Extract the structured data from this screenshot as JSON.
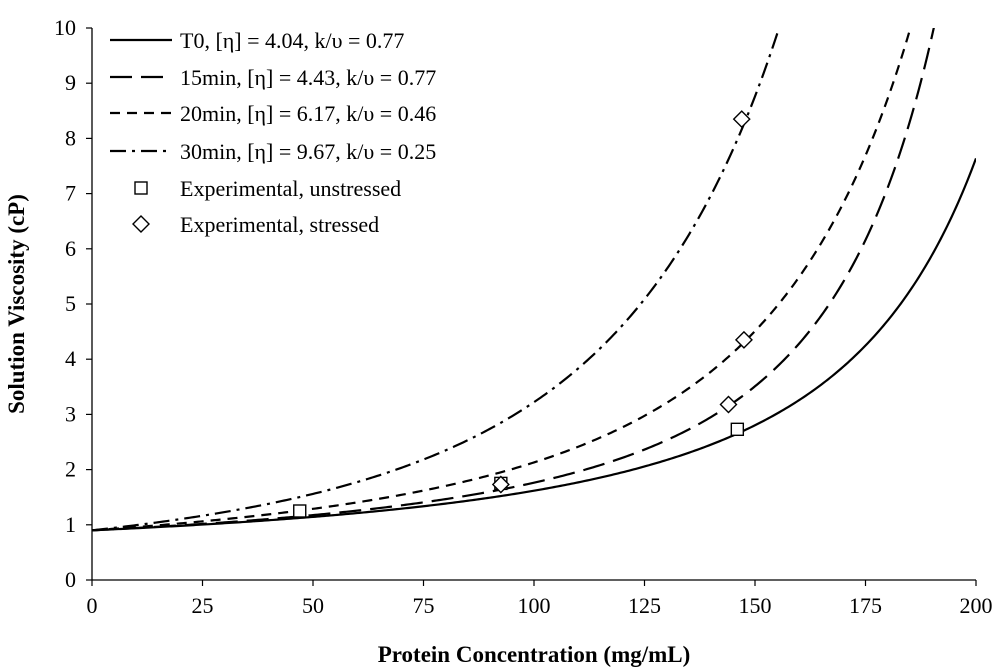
{
  "chart_data": {
    "type": "line",
    "title": "",
    "xlabel": "Protein Concentration (mg/mL)",
    "ylabel": "Solution Viscosity (cP)",
    "xlim": [
      0,
      200
    ],
    "ylim": [
      0,
      10
    ],
    "xticks": [
      0,
      25,
      50,
      75,
      100,
      125,
      150,
      175,
      200
    ],
    "yticks": [
      0,
      1,
      2,
      3,
      4,
      5,
      6,
      7,
      8,
      9,
      10
    ],
    "grid": false,
    "legend_position": "top-left",
    "solvent_viscosity": 0.9,
    "series": [
      {
        "name": "T0, [η] = 4.04, k/υ = 0.77",
        "kind": "curve",
        "style": "solid",
        "intrinsic_viscosity": 4.04,
        "k_over_v": 0.77
      },
      {
        "name": "15min, [η] = 4.43, k/υ = 0.77",
        "kind": "curve",
        "style": "long-dash",
        "intrinsic_viscosity": 4.43,
        "k_over_v": 0.77
      },
      {
        "name": "20min, [η] = 6.17, k/υ = 0.46",
        "kind": "curve",
        "style": "short-dash",
        "intrinsic_viscosity": 6.17,
        "k_over_v": 0.46
      },
      {
        "name": "30min, [η] = 9.67, k/υ = 0.25",
        "kind": "curve",
        "style": "dash-dot",
        "intrinsic_viscosity": 9.67,
        "k_over_v": 0.25
      },
      {
        "name": "Experimental, unstressed",
        "kind": "points",
        "marker": "square",
        "points": [
          [
            47,
            1.25
          ],
          [
            92.5,
            1.75
          ],
          [
            146,
            2.73
          ]
        ]
      },
      {
        "name": "Experimental, stressed",
        "kind": "points",
        "marker": "diamond",
        "points": [
          [
            92.5,
            1.73
          ],
          [
            144,
            3.18
          ],
          [
            147.5,
            4.35
          ],
          [
            147,
            8.35
          ]
        ]
      }
    ]
  }
}
